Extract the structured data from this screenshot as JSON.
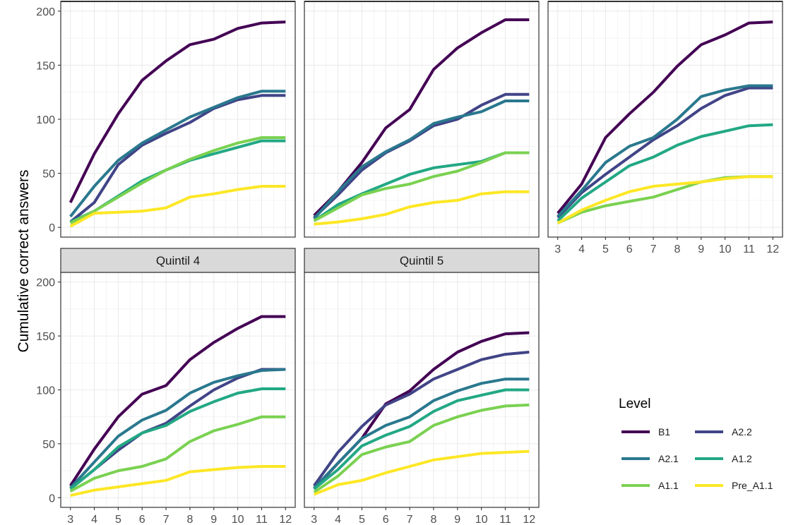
{
  "chart_data": {
    "type": "line",
    "ylabel": "Cumulative correct answers",
    "xlabel": "",
    "xlim": [
      3,
      12
    ],
    "ylim": [
      0,
      200
    ],
    "x_ticks": [
      3,
      4,
      5,
      6,
      7,
      8,
      9,
      10,
      11,
      12
    ],
    "y_ticks": [
      0,
      50,
      100,
      150,
      200
    ],
    "legend": {
      "title": "Level",
      "position": "bottom-right",
      "entries": [
        "B1",
        "A2.2",
        "A2.1",
        "A1.2",
        "A1.1",
        "Pre_A1.1"
      ]
    },
    "colors": {
      "B1": "#440154",
      "A2.2": "#414487",
      "A2.1": "#2A788E",
      "A1.2": "#22A884",
      "A1.1": "#7AD151",
      "Pre_A1.1": "#FDE725"
    },
    "panels": [
      {
        "title": "",
        "x": [
          3,
          4,
          5,
          6,
          7,
          8,
          9,
          10,
          11,
          12
        ],
        "series": [
          {
            "name": "B1",
            "values": [
              23,
              68,
              105,
              136,
              154,
              169,
              174,
              184,
              189,
              190
            ]
          },
          {
            "name": "A2.2",
            "values": [
              5,
              23,
              58,
              76,
              87,
              97,
              110,
              118,
              122,
              122
            ]
          },
          {
            "name": "A2.1",
            "values": [
              10,
              38,
              62,
              78,
              90,
              102,
              111,
              120,
              126,
              126
            ]
          },
          {
            "name": "A1.2",
            "values": [
              5,
              15,
              29,
              43,
              53,
              62,
              68,
              74,
              80,
              80
            ]
          },
          {
            "name": "A1.1",
            "values": [
              4,
              15,
              28,
              41,
              53,
              63,
              71,
              78,
              83,
              83
            ]
          },
          {
            "name": "Pre_A1.1",
            "values": [
              1,
              13,
              14,
              15,
              18,
              28,
              31,
              35,
              38,
              38
            ]
          }
        ]
      },
      {
        "title": "",
        "x": [
          3,
          4,
          5,
          6,
          7,
          8,
          9,
          10,
          11,
          12
        ],
        "series": [
          {
            "name": "B1",
            "values": [
              11,
              33,
              60,
              92,
              109,
              146,
              166,
              180,
              192,
              192
            ]
          },
          {
            "name": "A2.2",
            "values": [
              9,
              30,
              53,
              69,
              80,
              94,
              100,
              113,
              123,
              123
            ]
          },
          {
            "name": "A2.1",
            "values": [
              8,
              33,
              56,
              70,
              81,
              96,
              102,
              107,
              117,
              117
            ]
          },
          {
            "name": "A1.2",
            "values": [
              6,
              21,
              31,
              40,
              49,
              55,
              58,
              61,
              69,
              69
            ]
          },
          {
            "name": "A1.1",
            "values": [
              6,
              18,
              30,
              36,
              40,
              47,
              52,
              60,
              69,
              69
            ]
          },
          {
            "name": "Pre_A1.1",
            "values": [
              3,
              5,
              8,
              12,
              19,
              23,
              25,
              31,
              33,
              33
            ]
          }
        ]
      },
      {
        "title": "",
        "x": [
          3,
          4,
          5,
          6,
          7,
          8,
          9,
          10,
          11,
          12
        ],
        "series": [
          {
            "name": "B1",
            "values": [
              13,
              40,
              83,
              105,
              125,
              149,
              169,
              178,
              189,
              190
            ]
          },
          {
            "name": "A2.2",
            "values": [
              9,
              32,
              49,
              65,
              81,
              94,
              110,
              122,
              129,
              129
            ]
          },
          {
            "name": "A2.1",
            "values": [
              10,
              34,
              60,
              75,
              83,
              100,
              121,
              127,
              131,
              131
            ]
          },
          {
            "name": "A1.2",
            "values": [
              6,
              27,
              42,
              57,
              65,
              76,
              84,
              89,
              94,
              95
            ]
          },
          {
            "name": "A1.1",
            "values": [
              4,
              14,
              20,
              24,
              28,
              35,
              42,
              46,
              47,
              47
            ]
          },
          {
            "name": "Pre_A1.1",
            "values": [
              4,
              16,
              25,
              33,
              38,
              40,
              42,
              45,
              47,
              47
            ]
          }
        ]
      },
      {
        "title": "Quintil 4",
        "x": [
          3,
          4,
          5,
          6,
          7,
          8,
          9,
          10,
          11,
          12
        ],
        "series": [
          {
            "name": "B1",
            "values": [
              11,
              45,
              75,
              96,
              104,
              128,
              144,
              157,
              168,
              168
            ]
          },
          {
            "name": "A2.2",
            "values": [
              8,
              26,
              44,
              60,
              69,
              85,
              100,
              111,
              119,
              119
            ]
          },
          {
            "name": "A2.1",
            "values": [
              9,
              33,
              57,
              72,
              81,
              97,
              107,
              113,
              118,
              119
            ]
          },
          {
            "name": "A1.2",
            "values": [
              8,
              26,
              47,
              60,
              67,
              80,
              89,
              97,
              101,
              101
            ]
          },
          {
            "name": "A1.1",
            "values": [
              6,
              18,
              25,
              29,
              36,
              52,
              62,
              68,
              75,
              75
            ]
          },
          {
            "name": "Pre_A1.1",
            "values": [
              2,
              7,
              10,
              13,
              16,
              24,
              26,
              28,
              29,
              29
            ]
          }
        ]
      },
      {
        "title": "Quintil 5",
        "x": [
          3,
          4,
          5,
          6,
          7,
          8,
          9,
          10,
          11,
          12
        ],
        "series": [
          {
            "name": "B1",
            "values": [
              8,
              32,
              55,
              87,
              99,
              119,
              135,
              145,
              152,
              153
            ]
          },
          {
            "name": "A2.2",
            "values": [
              11,
              42,
              66,
              86,
              96,
              110,
              119,
              128,
              133,
              135
            ]
          },
          {
            "name": "A2.1",
            "values": [
              9,
              32,
              55,
              67,
              75,
              90,
              99,
              106,
              110,
              110
            ]
          },
          {
            "name": "A1.2",
            "values": [
              8,
              26,
              48,
              58,
              66,
              80,
              90,
              95,
              100,
              100
            ]
          },
          {
            "name": "A1.1",
            "values": [
              5,
              20,
              40,
              47,
              52,
              67,
              75,
              81,
              85,
              86
            ]
          },
          {
            "name": "Pre_A1.1",
            "values": [
              3,
              12,
              16,
              23,
              29,
              35,
              38,
              41,
              42,
              43
            ]
          }
        ]
      }
    ]
  }
}
